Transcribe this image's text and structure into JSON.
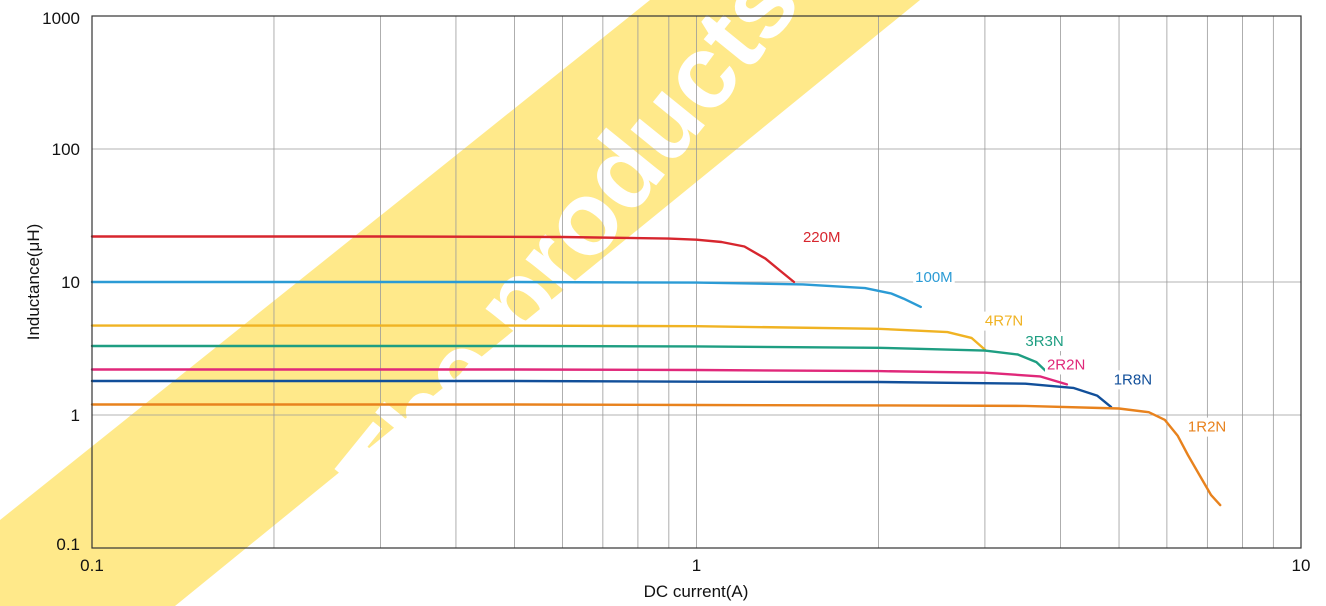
{
  "chart_data": {
    "type": "line",
    "xlabel": "DC current(A)",
    "ylabel": "Inductance(μH)",
    "xscale": "log",
    "yscale": "log",
    "xlim": [
      0.1,
      10
    ],
    "ylim": [
      0.1,
      1000
    ],
    "grid": true,
    "x_tick_labels": [
      "0.1",
      "1",
      "10"
    ],
    "y_tick_labels": [
      "0.1",
      "1",
      "10",
      "100",
      "1000"
    ],
    "watermark": {
      "text_lines": [
        "The products w...",
        "stopped p..."
      ],
      "color": "#FFE98A"
    },
    "series": [
      {
        "name": "220M",
        "color": "#D7262E",
        "x": [
          0.1,
          0.3,
          0.6,
          0.9,
          1.0,
          1.1,
          1.2,
          1.3,
          1.38,
          1.45
        ],
        "y": [
          22,
          22,
          21.8,
          21.2,
          20.8,
          20,
          18.5,
          15,
          12,
          10
        ]
      },
      {
        "name": "100M",
        "color": "#2B9BD5",
        "x": [
          0.1,
          0.5,
          1.0,
          1.5,
          1.9,
          2.1,
          2.2,
          2.35
        ],
        "y": [
          10,
          10,
          9.9,
          9.6,
          9.0,
          8.2,
          7.5,
          6.5
        ]
      },
      {
        "name": "4R7N",
        "color": "#F0B323",
        "x": [
          0.1,
          0.5,
          1.0,
          2.0,
          2.6,
          2.85,
          3.0
        ],
        "y": [
          4.7,
          4.7,
          4.65,
          4.45,
          4.2,
          3.8,
          3.1
        ]
      },
      {
        "name": "3R3N",
        "color": "#1E9E82",
        "x": [
          0.1,
          0.5,
          1.0,
          2.0,
          3.0,
          3.4,
          3.65,
          3.8
        ],
        "y": [
          3.3,
          3.3,
          3.28,
          3.2,
          3.05,
          2.85,
          2.5,
          2.1
        ]
      },
      {
        "name": "2R2N",
        "color": "#E0287A",
        "x": [
          0.1,
          0.5,
          1.0,
          2.0,
          3.0,
          3.7,
          4.1
        ],
        "y": [
          2.2,
          2.2,
          2.18,
          2.14,
          2.08,
          1.95,
          1.7
        ]
      },
      {
        "name": "1R8N",
        "color": "#114F9A",
        "x": [
          0.1,
          0.5,
          1.0,
          2.0,
          3.5,
          4.2,
          4.6,
          4.85
        ],
        "y": [
          1.8,
          1.8,
          1.78,
          1.77,
          1.72,
          1.6,
          1.4,
          1.15
        ]
      },
      {
        "name": "1R2N",
        "color": "#E8821D",
        "x": [
          0.1,
          0.5,
          1.0,
          2.0,
          3.5,
          5.0,
          5.6,
          5.95,
          6.25,
          6.5,
          6.8,
          7.1,
          7.35
        ],
        "y": [
          1.2,
          1.2,
          1.19,
          1.18,
          1.17,
          1.12,
          1.05,
          0.92,
          0.7,
          0.5,
          0.35,
          0.25,
          0.21
        ]
      }
    ],
    "label_anchors": [
      {
        "name": "220M",
        "x": 1.5,
        "y": 20
      },
      {
        "name": "100M",
        "x": 2.3,
        "y": 10
      },
      {
        "name": "4R7N",
        "x": 3.0,
        "y": 4.7
      },
      {
        "name": "3R3N",
        "x": 3.5,
        "y": 3.3
      },
      {
        "name": "2R2N",
        "x": 3.8,
        "y": 2.2
      },
      {
        "name": "1R8N",
        "x": 4.9,
        "y": 1.7
      },
      {
        "name": "1R2N",
        "x": 6.5,
        "y": 0.75
      }
    ]
  }
}
